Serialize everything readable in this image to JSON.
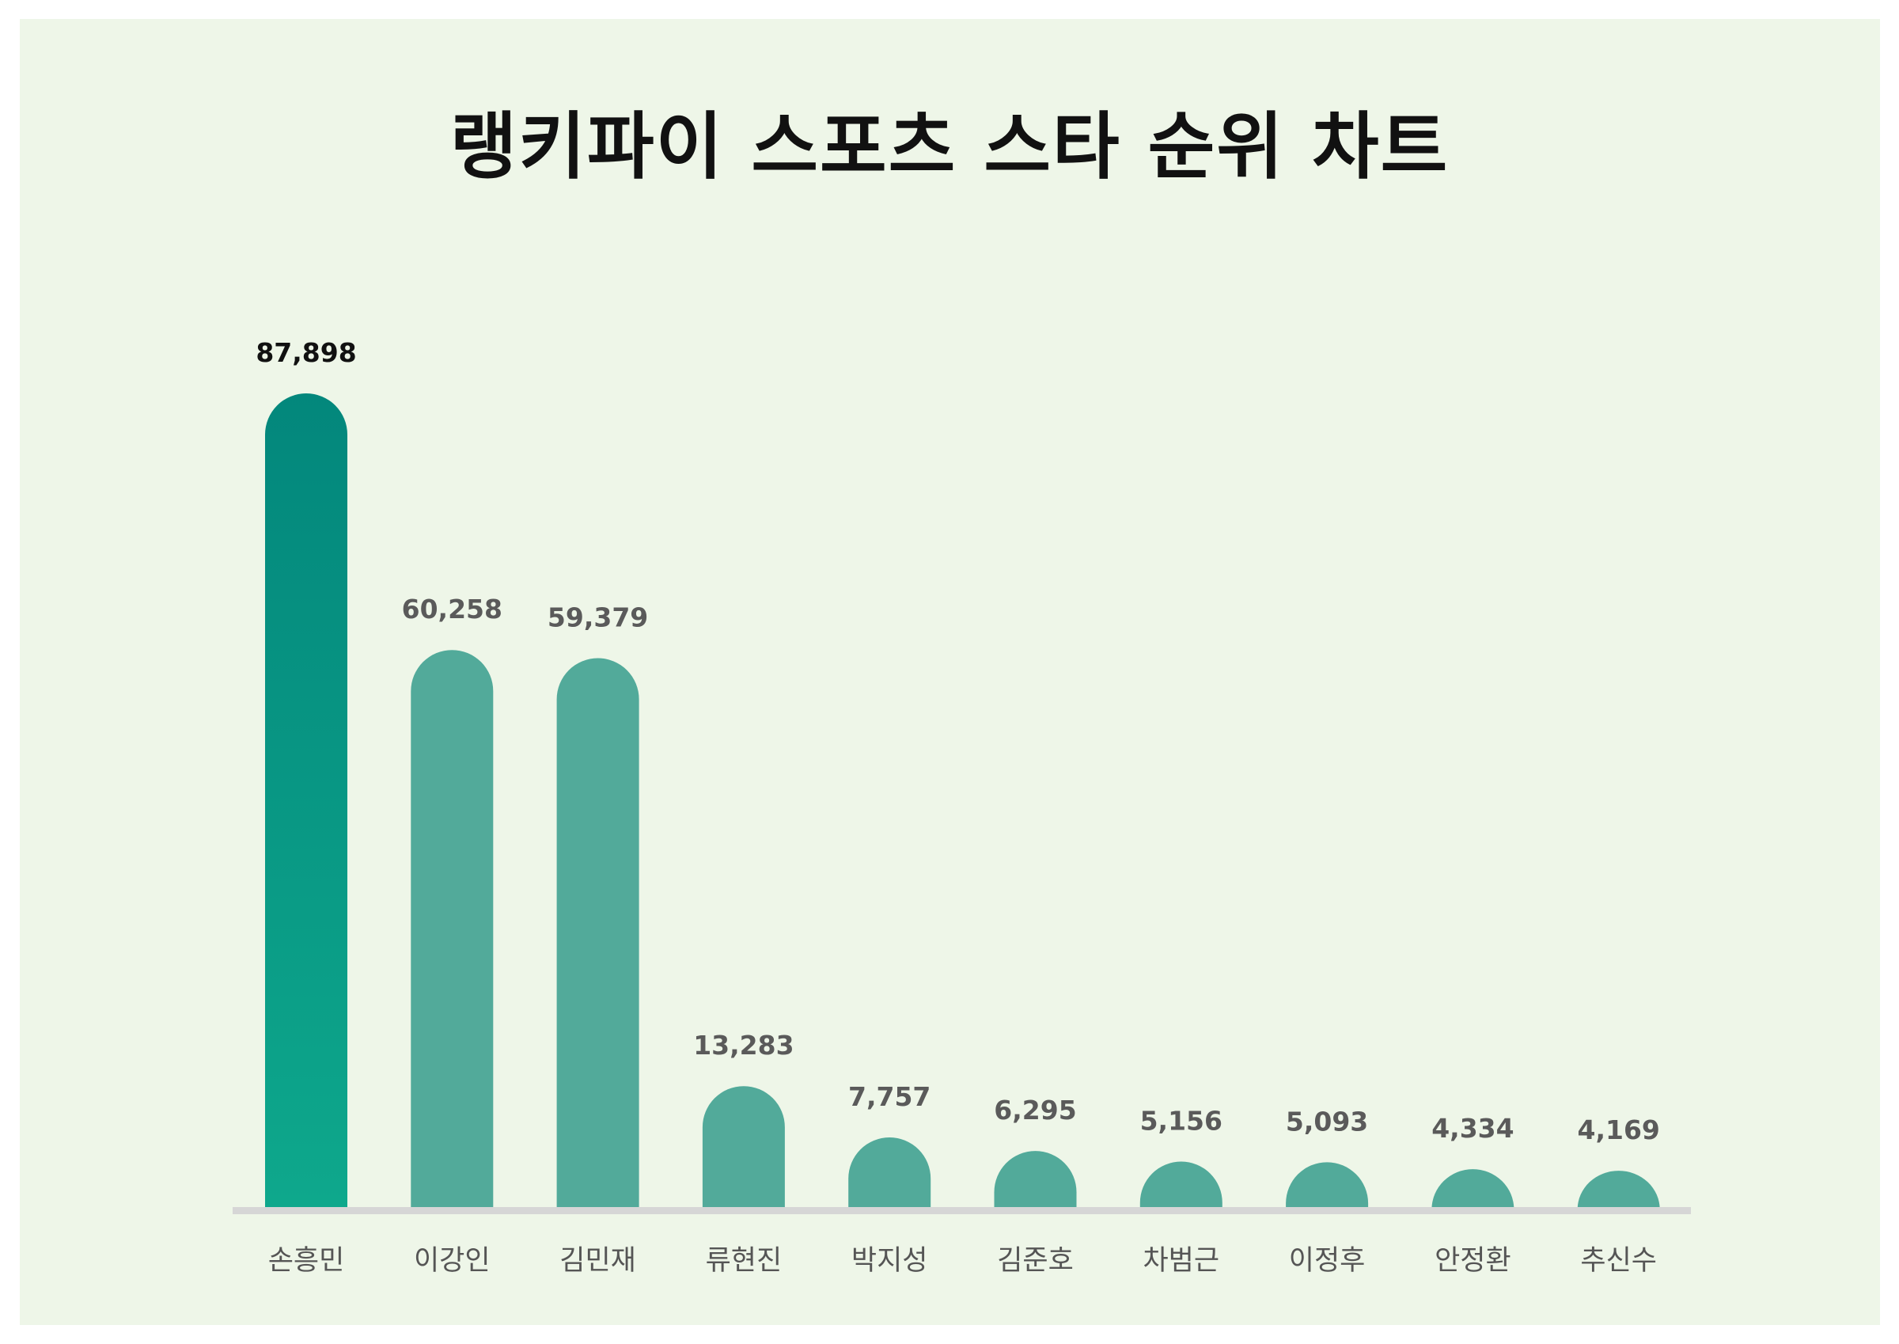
{
  "title": "랭키파이 스포츠 스타 순위 차트",
  "colors": {
    "background": "#eef6e8",
    "bar": "#52aa9a",
    "top_bar_top": "#03877c",
    "top_bar_bottom": "#0ea88c",
    "baseline": "#d6d6d6",
    "top_value_label": "#111111",
    "value_label": "#5a5a5a"
  },
  "chart_data": {
    "type": "bar",
    "title": "랭키파이 스포츠 스타 순위 차트",
    "categories": [
      "손흥민",
      "이강인",
      "김민재",
      "류현진",
      "박지성",
      "김준호",
      "차범근",
      "이정후",
      "안정환",
      "추신수"
    ],
    "values": [
      87898,
      60258,
      59379,
      13283,
      7757,
      6295,
      5156,
      5093,
      4334,
      4169
    ],
    "value_labels": [
      "87,898",
      "60,258",
      "59,379",
      "13,283",
      "7,757",
      "6,295",
      "5,156",
      "5,093",
      "4,334",
      "4,169"
    ],
    "xlabel": "",
    "ylabel": "",
    "ylim": [
      0,
      87898
    ],
    "grid": false,
    "legend": "none"
  }
}
